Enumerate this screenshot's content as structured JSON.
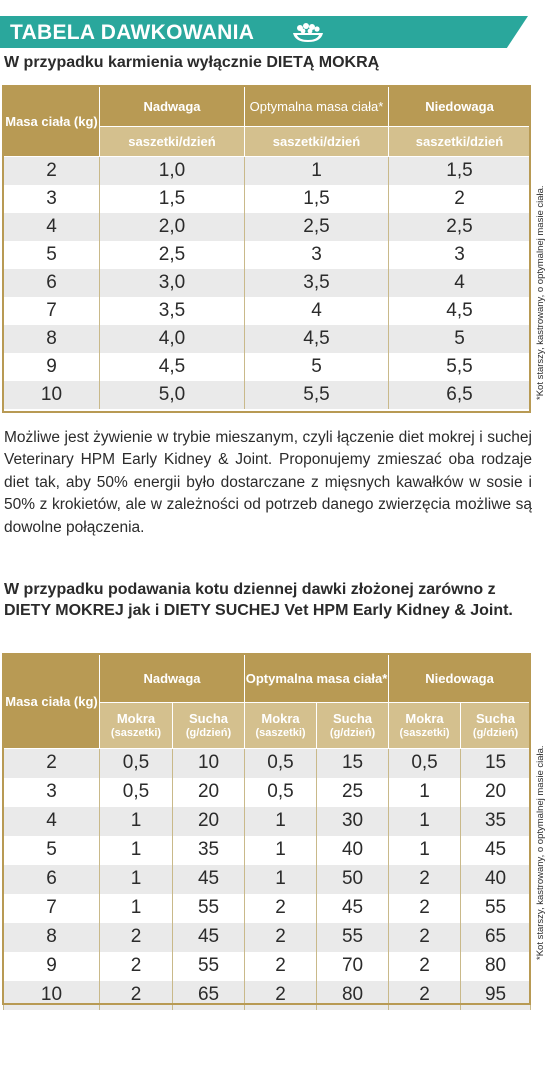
{
  "banner": {
    "title": "TABELA DAWKOWANIA",
    "icon": "food-bowl-icon",
    "color": "#2aa79c"
  },
  "section1": {
    "subtitle": "W przypadku karmienia wyłącznie DIETĄ MOKRĄ",
    "col_weight": "Masa ciała (kg)",
    "groups": [
      "Nadwaga",
      "Optymalna masa ciała*",
      "Niedowaga"
    ],
    "subheaders": [
      "saszetki/dzień",
      "saszetki/dzień",
      "saszetki/dzień"
    ],
    "rows": [
      [
        "2",
        "1,0",
        "1",
        "1,5"
      ],
      [
        "3",
        "1,5",
        "1,5",
        "2"
      ],
      [
        "4",
        "2,0",
        "2,5",
        "2,5"
      ],
      [
        "5",
        "2,5",
        "3",
        "3"
      ],
      [
        "6",
        "3,0",
        "3,5",
        "4"
      ],
      [
        "7",
        "3,5",
        "4",
        "4,5"
      ],
      [
        "8",
        "4,0",
        "4,5",
        "5"
      ],
      [
        "9",
        "4,5",
        "5",
        "5,5"
      ],
      [
        "10",
        "5,0",
        "5,5",
        "6,5"
      ]
    ],
    "side_note": "*Kot starszy, kastrowany, o optymalnej masie ciała."
  },
  "paragraph": "Możliwe jest żywienie w trybie mieszanym, czyli łączenie diet mokrej i suchej Veterinary HPM Early Kidney & Joint. Proponujemy zmieszać oba rodzaje diet tak, aby 50% energii było dostarczane z mięsnych kawałków w sosie i 50% z krokietów, ale w zależności od potrzeb danego zwierzęcia możliwe są dowolne połączenia.",
  "section2": {
    "subtitle": "W przypadku podawania kotu dziennej dawki złożonej zarówno z DIETY MOKREJ jak i DIETY SUCHEJ Vet HPM Early Kidney & Joint.",
    "col_weight": "Masa ciała (kg)",
    "groups": [
      "Nadwaga",
      "Optymalna masa ciała*",
      "Niedowaga"
    ],
    "subheaders": [
      {
        "main": "Mokra",
        "unit": "(saszetki)"
      },
      {
        "main": "Sucha",
        "unit": "(g/dzień)"
      },
      {
        "main": "Mokra",
        "unit": "(saszetki)"
      },
      {
        "main": "Sucha",
        "unit": "(g/dzień)"
      },
      {
        "main": "Mokra",
        "unit": "(saszetki)"
      },
      {
        "main": "Sucha",
        "unit": "(g/dzień)"
      }
    ],
    "rows": [
      [
        "2",
        "0,5",
        "10",
        "0,5",
        "15",
        "0,5",
        "15"
      ],
      [
        "3",
        "0,5",
        "20",
        "0,5",
        "25",
        "1",
        "20"
      ],
      [
        "4",
        "1",
        "20",
        "1",
        "30",
        "1",
        "35"
      ],
      [
        "5",
        "1",
        "35",
        "1",
        "40",
        "1",
        "45"
      ],
      [
        "6",
        "1",
        "45",
        "1",
        "50",
        "2",
        "40"
      ],
      [
        "7",
        "1",
        "55",
        "2",
        "45",
        "2",
        "55"
      ],
      [
        "8",
        "2",
        "45",
        "2",
        "55",
        "2",
        "65"
      ],
      [
        "9",
        "2",
        "55",
        "2",
        "70",
        "2",
        "80"
      ],
      [
        "10",
        "2",
        "65",
        "2",
        "80",
        "2",
        "95"
      ]
    ],
    "side_note": "*Kot starszy, kastrowany, o optymalnej masie ciała."
  },
  "colors": {
    "gold": "#b89a54",
    "light_gold": "#d4c08e",
    "stripe": "#eaeaea"
  }
}
